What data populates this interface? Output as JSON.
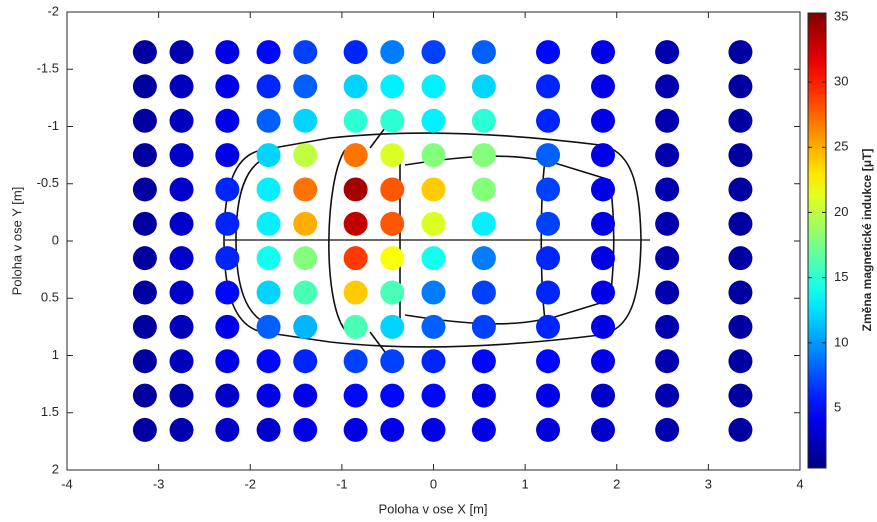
{
  "chart_data": {
    "type": "scatter",
    "xlabel": "Poloha v ose X [m]",
    "ylabel": "Poloha v ose Y [m]",
    "colorbar_label": "Změna magnetické indukce [μT]",
    "xlim": [
      -4,
      4
    ],
    "ylim": [
      -2,
      2
    ],
    "y_reversed": true,
    "xticks": [
      -4,
      -3,
      -2,
      -1,
      0,
      1,
      2,
      3,
      4
    ],
    "yticks": [
      -2,
      -1.5,
      -1,
      -0.5,
      0,
      0.5,
      1,
      1.5,
      2
    ],
    "colormap": "jet",
    "clim": [
      0.4,
      35.3
    ],
    "cticks": [
      5,
      10,
      15,
      20,
      25,
      30,
      35
    ],
    "x": [
      -3.15,
      -2.75,
      -2.25,
      -1.8,
      -1.4,
      -0.85,
      -0.45,
      0,
      0.55,
      1.25,
      1.85,
      2.55,
      3.35
    ],
    "y": [
      -1.65,
      -1.35,
      -1.05,
      -0.75,
      -0.45,
      -0.15,
      0.15,
      0.45,
      0.75,
      1.05,
      1.35,
      1.65
    ],
    "values": [
      [
        1.5,
        2,
        4,
        5,
        7,
        6,
        9,
        7,
        8,
        5,
        4,
        2,
        1.5
      ],
      [
        1.5,
        2.5,
        4,
        6,
        8,
        12,
        13,
        13,
        12,
        6,
        4,
        2,
        1.5
      ],
      [
        1.5,
        2.5,
        4,
        8,
        12,
        15,
        15,
        13,
        15,
        6,
        4,
        2,
        1.5
      ],
      [
        1.5,
        3,
        4,
        12,
        20,
        27,
        21,
        18,
        18,
        8,
        4,
        2,
        1.5
      ],
      [
        1.5,
        3,
        6,
        13,
        27,
        34,
        28,
        24,
        18,
        7,
        4,
        2,
        1.5
      ],
      [
        1.5,
        3,
        6,
        13,
        25,
        33,
        28,
        21,
        13,
        7,
        4,
        2,
        1.5
      ],
      [
        1.5,
        3,
        6,
        14,
        18,
        29,
        22,
        14,
        9,
        6,
        4,
        2,
        1.5
      ],
      [
        1.5,
        3,
        5,
        12,
        16,
        24,
        16,
        9,
        7,
        6,
        4,
        2,
        1.5
      ],
      [
        1.5,
        2.5,
        4,
        8,
        11,
        16,
        12,
        8,
        7,
        6,
        4,
        2,
        1.5
      ],
      [
        1.5,
        2.5,
        4,
        5,
        6,
        7,
        7,
        6,
        5,
        5,
        4,
        2,
        1.5
      ],
      [
        1.5,
        2,
        3,
        4,
        4,
        5,
        5,
        5,
        4,
        4,
        3,
        2,
        1.5
      ],
      [
        1.5,
        2,
        3,
        3,
        4,
        4,
        4,
        4,
        4,
        3.5,
        3,
        2,
        1.5
      ]
    ]
  }
}
